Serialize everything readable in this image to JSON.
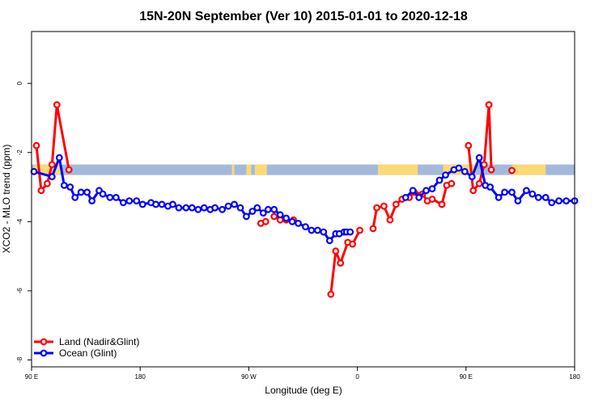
{
  "chart_data": {
    "type": "line",
    "title": "15N-20N September (Ver 10)   2015-01-01 to 2020-12-18",
    "xlabel": "Longitude (deg E)",
    "ylabel": "XCO2 - MLO trend (ppm)",
    "xlim": [
      90,
      540
    ],
    "ylim": [
      -8.2,
      1.5
    ],
    "x_ticks": [
      {
        "value": 90,
        "label": "90 E"
      },
      {
        "value": 180,
        "label": "180"
      },
      {
        "value": 270,
        "label": "90 W"
      },
      {
        "value": 360,
        "label": "0"
      },
      {
        "value": 450,
        "label": "90 E"
      },
      {
        "value": 540,
        "label": "180"
      }
    ],
    "y_ticks": [
      {
        "value": 0,
        "label": "0"
      },
      {
        "value": -2,
        "label": "-2"
      },
      {
        "value": -4,
        "label": "-4"
      },
      {
        "value": -6,
        "label": "-6"
      },
      {
        "value": -8,
        "label": "-8"
      }
    ],
    "land_band": {
      "y_center": -2.5,
      "colors": {
        "ocean": "#a3b9dc",
        "land": "#fbd975"
      },
      "land_ranges": [
        [
          92,
          114
        ],
        [
          256,
          258
        ],
        [
          268,
          272
        ],
        [
          275,
          285
        ],
        [
          377,
          410
        ],
        [
          431,
          446
        ],
        [
          445,
          458
        ],
        [
          488,
          516
        ]
      ]
    },
    "series": [
      {
        "name": "Land (Nadir&Glint)",
        "color": "#ff0000",
        "segments": [
          {
            "x": [
              94,
              98,
              103,
              107,
              111,
              121
            ],
            "y": [
              -1.8,
              -3.1,
              -2.9,
              -2.35,
              -0.62,
              -2.5
            ]
          },
          {
            "x": [
              280,
              284
            ],
            "y": [
              -4.05,
              -4.0
            ]
          },
          {
            "x": [
              291,
              296,
              301,
              307
            ],
            "y": [
              -3.85,
              -3.95,
              -3.95,
              -3.95
            ]
          },
          {
            "x": [
              338,
              342,
              346,
              352,
              356,
              362
            ],
            "y": [
              -6.1,
              -4.85,
              -5.2,
              -4.6,
              -4.65,
              -4.25
            ]
          },
          {
            "x": [
              373,
              376,
              382,
              387,
              392,
              397,
              403,
              407,
              414,
              418,
              422,
              430
            ],
            "y": [
              -4.2,
              -3.6,
              -3.55,
              -3.95,
              -3.5,
              -3.35,
              -3.3,
              -3.15,
              -3.2,
              -3.4,
              -3.35,
              -3.5
            ]
          },
          {
            "x": [
              430,
              434,
              438
            ],
            "y": [
              -3.5,
              -2.95,
              -2.9
            ]
          },
          {
            "x": [
              452,
              456,
              461,
              465,
              469
            ],
            "y": [
              -1.8,
              -3.1,
              -2.9,
              -2.35,
              -0.62
            ]
          },
          {
            "x": [
              469,
              471
            ],
            "y": [
              -0.62,
              -2.5
            ]
          },
          {
            "x": [
              488
            ],
            "y": [
              -2.52
            ]
          }
        ]
      },
      {
        "name": "Ocean (Glint)",
        "color": "#0000ff",
        "segments": [
          {
            "x": [
              92,
              107,
              113,
              117,
              122,
              126,
              131,
              136,
              140,
              146,
              149,
              155,
              160,
              166,
              171,
              177,
              182,
              189,
              193,
              198,
              203,
              207,
              212,
              218,
              223,
              228,
              233,
              238,
              242,
              248,
              253,
              258,
              263,
              268,
              273,
              277,
              282,
              286,
              291,
              296,
              301,
              306,
              311,
              317,
              322,
              327,
              332,
              337,
              342,
              345,
              349,
              351,
              354
            ],
            "y": [
              -2.55,
              -2.7,
              -2.15,
              -2.95,
              -3.0,
              -3.3,
              -3.15,
              -3.15,
              -3.4,
              -3.1,
              -3.2,
              -3.3,
              -3.3,
              -3.45,
              -3.4,
              -3.4,
              -3.5,
              -3.45,
              -3.5,
              -3.5,
              -3.55,
              -3.5,
              -3.6,
              -3.6,
              -3.6,
              -3.65,
              -3.6,
              -3.65,
              -3.6,
              -3.65,
              -3.55,
              -3.5,
              -3.6,
              -3.85,
              -3.7,
              -3.6,
              -3.75,
              -3.65,
              -3.65,
              -3.8,
              -3.9,
              -4.0,
              -4.05,
              -4.15,
              -4.25,
              -4.25,
              -4.3,
              -4.55,
              -4.35,
              -4.35,
              -4.3,
              -4.3,
              -4.3
            ]
          },
          {
            "x": [
              400,
              406,
              411,
              417,
              422,
              428,
              433,
              440,
              444,
              449,
              455,
              461,
              466,
              470,
              477,
              482,
              488,
              493,
              500,
              505,
              510,
              516,
              521,
              527,
              533,
              540
            ],
            "y": [
              -3.3,
              -3.1,
              -3.3,
              -3.1,
              -3.05,
              -2.8,
              -2.65,
              -2.5,
              -2.45,
              -2.55,
              -2.7,
              -2.15,
              -2.95,
              -3.0,
              -3.3,
              -3.15,
              -3.15,
              -3.4,
              -3.1,
              -3.2,
              -3.3,
              -3.3,
              -3.45,
              -3.4,
              -3.4,
              -3.4
            ]
          }
        ]
      }
    ],
    "legend": {
      "placement": "bottom-left",
      "entries": [
        "Land (Nadir&Glint)",
        "Ocean (Glint)"
      ]
    }
  }
}
